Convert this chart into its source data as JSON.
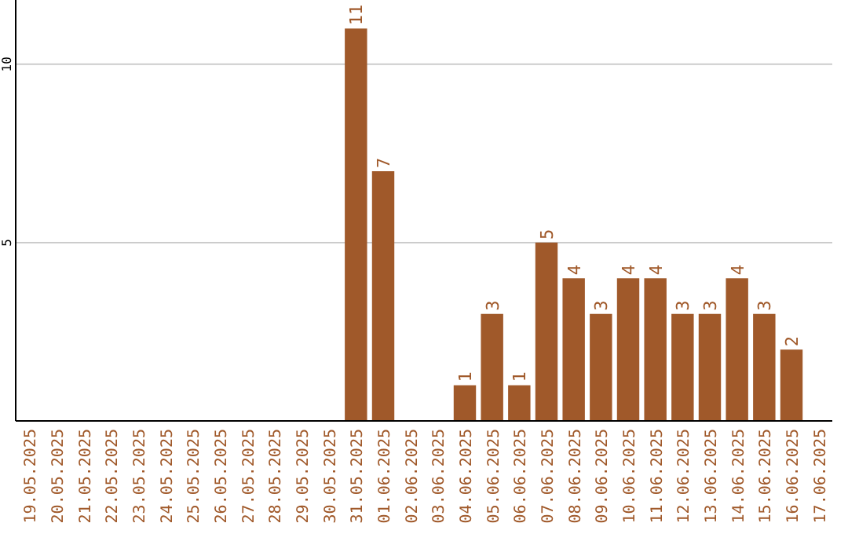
{
  "chart_data": {
    "type": "bar",
    "categories": [
      "19.05.2025",
      "20.05.2025",
      "21.05.2025",
      "22.05.2025",
      "23.05.2025",
      "24.05.2025",
      "25.05.2025",
      "26.05.2025",
      "27.05.2025",
      "28.05.2025",
      "29.05.2025",
      "30.05.2025",
      "31.05.2025",
      "01.06.2025",
      "02.06.2025",
      "03.06.2025",
      "04.06.2025",
      "05.06.2025",
      "06.06.2025",
      "07.06.2025",
      "08.06.2025",
      "09.06.2025",
      "10.06.2025",
      "11.06.2025",
      "12.06.2025",
      "13.06.2025",
      "14.06.2025",
      "15.06.2025",
      "16.06.2025",
      "17.06.2025"
    ],
    "values": [
      0,
      0,
      0,
      0,
      0,
      0,
      0,
      0,
      0,
      0,
      0,
      0,
      11,
      7,
      0,
      0,
      1,
      3,
      1,
      5,
      4,
      3,
      4,
      4,
      3,
      3,
      4,
      3,
      2,
      0
    ],
    "value_labels": [
      null,
      null,
      null,
      null,
      null,
      null,
      null,
      null,
      null,
      null,
      null,
      null,
      "11",
      "7",
      null,
      null,
      "1",
      "3",
      "1",
      "5",
      "4",
      "3",
      "4",
      "4",
      "3",
      "3",
      "4",
      "3",
      "2",
      null
    ],
    "color": "#a0592a",
    "ylim": [
      0,
      11.8
    ],
    "yticks": [
      5,
      10
    ],
    "grid": "y"
  }
}
